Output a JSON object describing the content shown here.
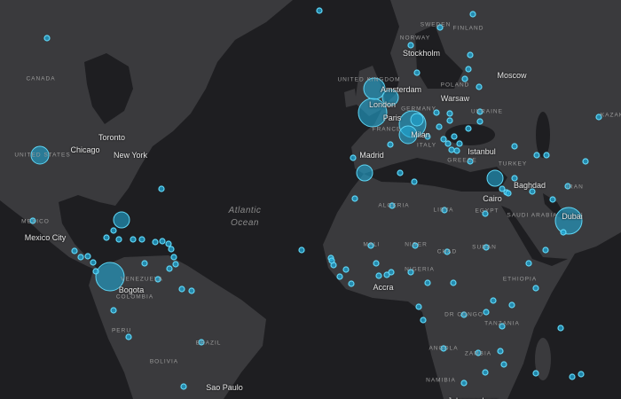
{
  "map": {
    "colors": {
      "water": "#1e1e21",
      "land": "#3a3a3d",
      "marker_fill": "#1fa6d4",
      "marker_stroke": "#5fd6f5"
    },
    "ocean_labels": [
      "Atlantic",
      "Ocean"
    ],
    "city_labels": [
      "Toronto",
      "Chicago",
      "New York",
      "Mexico City",
      "Bogota",
      "Sao Paulo",
      "Stockholm",
      "Moscow",
      "Amsterdam",
      "Warsaw",
      "London",
      "Paris",
      "Milan",
      "Madrid",
      "Istanbul",
      "Baghdad",
      "Cairo",
      "Dubai",
      "Accra",
      "Johannesburg"
    ],
    "country_labels": [
      "CANADA",
      "UNITED STATES",
      "MEXICO",
      "VENEZUELA",
      "COLOMBIA",
      "PERU",
      "BRAZIL",
      "BOLIVIA",
      "SWEDEN",
      "FINLAND",
      "NORWAY",
      "UNITED KINGDOM",
      "GERMANY",
      "POLAND",
      "UKRAINE",
      "FRANCE",
      "ITALY",
      "GREECE",
      "TURKEY",
      "KAZAK",
      "IRAN",
      "SAUDI ARABIA",
      "ALGERIA",
      "LIBYA",
      "EGYPT",
      "MALI",
      "NIGER",
      "CHAD",
      "SUDAN",
      "NIGERIA",
      "ETHIOPIA",
      "DR CONGO",
      "TANZANIA",
      "ANGOLA",
      "ZAMBIA",
      "NAMIBIA"
    ]
  }
}
